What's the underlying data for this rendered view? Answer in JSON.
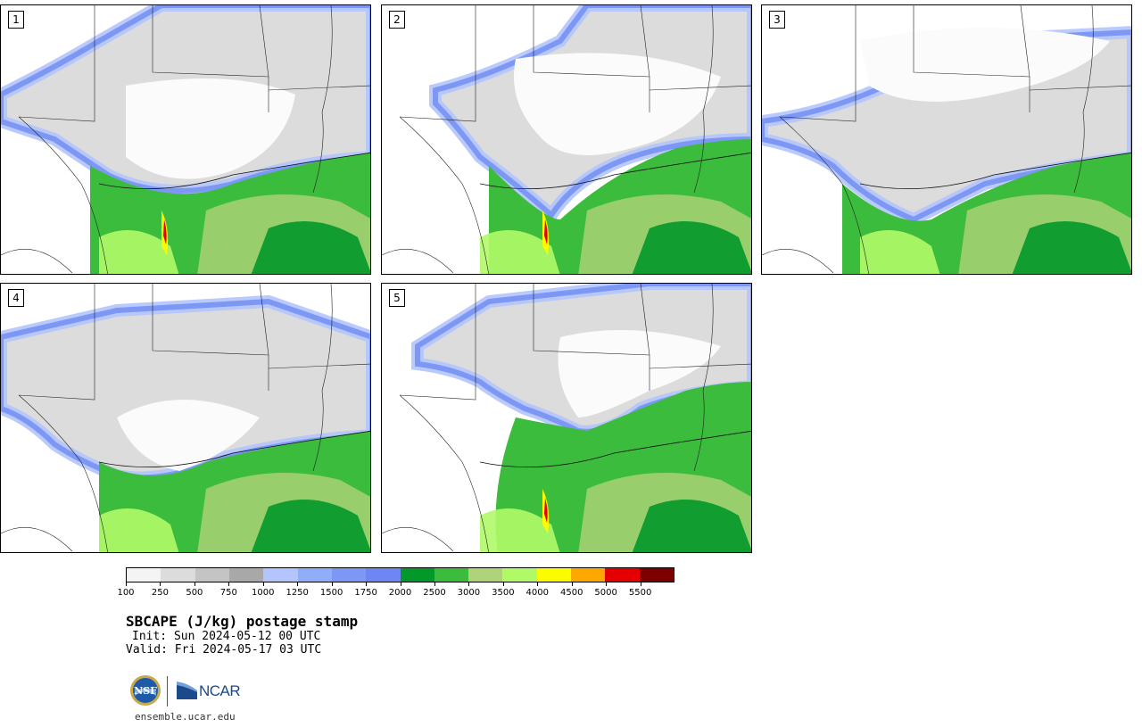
{
  "panels": [
    {
      "number": "1",
      "variant": 1
    },
    {
      "number": "2",
      "variant": 2
    },
    {
      "number": "3",
      "variant": 3
    },
    {
      "number": "4",
      "variant": 4
    },
    {
      "number": "5",
      "variant": 5
    }
  ],
  "colorbar": {
    "colors": [
      "#f4f4f4",
      "#dcdcdc",
      "#c4c4c4",
      "#a8a8a8",
      "#b4c4fc",
      "#90aef8",
      "#7c98f4",
      "#6e86f2",
      "#02982a",
      "#3cbc3c",
      "#b0d278",
      "#b0fa68",
      "#fcfc00",
      "#fca800",
      "#e40000",
      "#7c0000"
    ],
    "ticks": [
      "100",
      "250",
      "500",
      "750",
      "1000",
      "1250",
      "1500",
      "1750",
      "2000",
      "2500",
      "3000",
      "3500",
      "4000",
      "4500",
      "5000",
      "5500"
    ]
  },
  "title": "SBCAPE (J/kg) postage stamp",
  "init": "Init: Sun 2024-05-12 00 UTC",
  "valid": "Valid: Fri 2024-05-17 03 UTC",
  "logos": {
    "left": "nsf-logo",
    "right_text": "NCAR"
  },
  "site": "ensemble.ucar.edu"
}
